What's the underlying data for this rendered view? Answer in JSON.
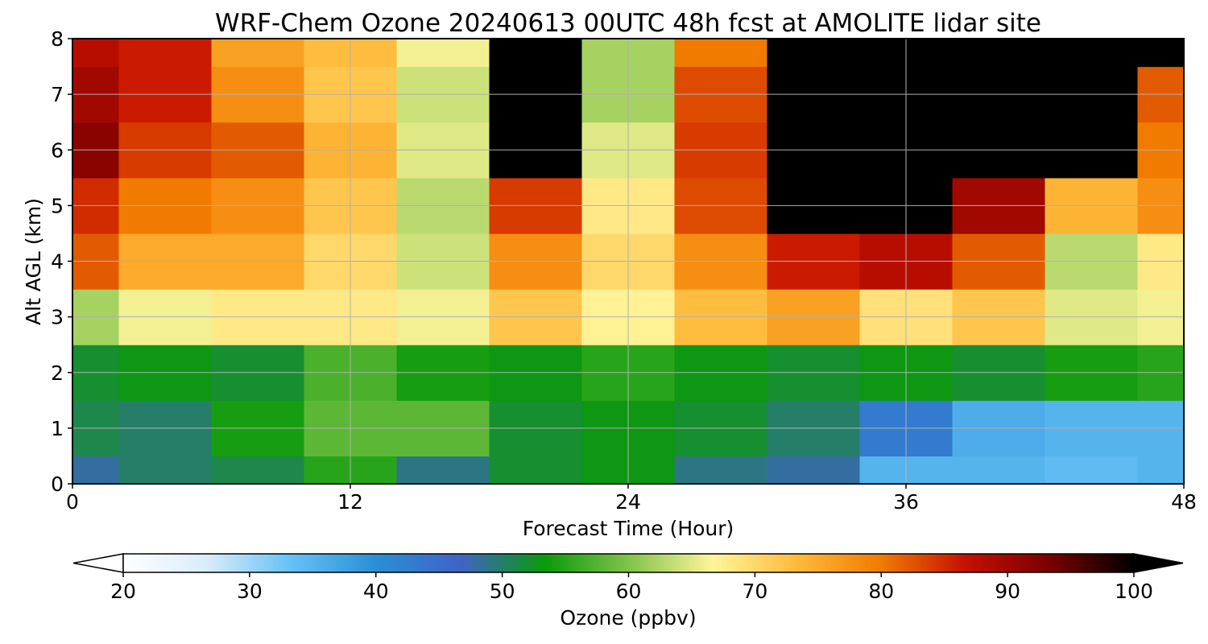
{
  "chart_data": {
    "type": "heatmap",
    "title": "WRF-Chem Ozone  20240613 00UTC 48h fcst at AMOLITE lidar site",
    "xlabel": "Forecast Time (Hour)",
    "ylabel": "Alt AGL (km)",
    "xlim": [
      0,
      48
    ],
    "ylim": [
      0,
      8
    ],
    "xticks": [
      "0",
      "12",
      "24",
      "36",
      "48"
    ],
    "yticks": [
      "0",
      "1",
      "2",
      "3",
      "4",
      "5",
      "6",
      "7",
      "8"
    ],
    "grid": true,
    "colorbar": {
      "label": "Ozone  (ppbv)",
      "range": [
        20,
        100
      ],
      "extend": "both",
      "ticks": [
        "20",
        "30",
        "40",
        "50",
        "60",
        "70",
        "80",
        "90",
        "100"
      ],
      "colors": [
        "#ffffff",
        "#d8ecfa",
        "#65c0f5",
        "#2a8fd6",
        "#3f63c6",
        "#0a9a0a",
        "#80c34a",
        "#fff59a",
        "#ffba3b",
        "#f07b00",
        "#c61000",
        "#7a0000",
        "#000000"
      ]
    },
    "x": [
      0,
      4,
      8,
      12,
      16,
      20,
      24,
      28,
      32,
      36,
      40,
      44,
      48
    ],
    "y": [
      0,
      1,
      2,
      3,
      4,
      5,
      6,
      7,
      8
    ],
    "z": [
      [
        48,
        50,
        51,
        55,
        49,
        52,
        53,
        49,
        48,
        35,
        35,
        34,
        35
      ],
      [
        51,
        50,
        54,
        58,
        58,
        52,
        53,
        52,
        50,
        43,
        36,
        35,
        35
      ],
      [
        52,
        53,
        52,
        57,
        54,
        53,
        55,
        53,
        52,
        53,
        52,
        54,
        55
      ],
      [
        62,
        66,
        68,
        68,
        66,
        72,
        67,
        73,
        76,
        69,
        72,
        65,
        66
      ],
      [
        82,
        75,
        75,
        70,
        64,
        78,
        70,
        78,
        86,
        88,
        82,
        63,
        68
      ],
      [
        85,
        80,
        78,
        72,
        63,
        84,
        68,
        83,
        100,
        100,
        90,
        74,
        78
      ],
      [
        92,
        84,
        82,
        74,
        65,
        100,
        65,
        84,
        100,
        100,
        100,
        100,
        80
      ],
      [
        90,
        86,
        78,
        72,
        64,
        100,
        62,
        83,
        100,
        100,
        100,
        100,
        82
      ],
      [
        88,
        86,
        76,
        73,
        66,
        100,
        62,
        80,
        100,
        100,
        100,
        100,
        100
      ]
    ]
  }
}
